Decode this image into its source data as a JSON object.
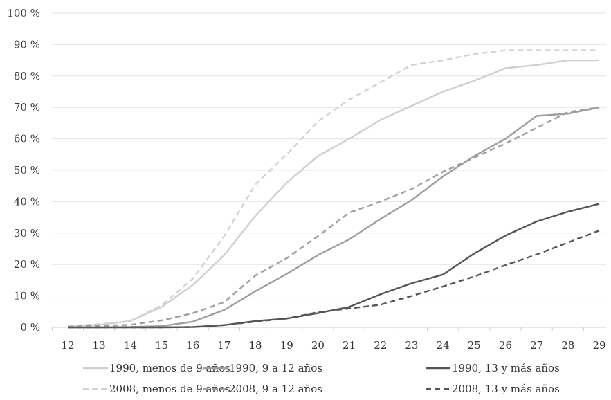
{
  "chart_data": {
    "type": "line",
    "title": "",
    "xlabel": "",
    "ylabel": "",
    "x": [
      "12",
      "13",
      "14",
      "15",
      "16",
      "17",
      "18",
      "19",
      "20",
      "21",
      "22",
      "23",
      "24",
      "25",
      "26",
      "27",
      "28",
      "29"
    ],
    "ylim": [
      0,
      100
    ],
    "yticks": [
      "0 %",
      "10 %",
      "20 %",
      "30 %",
      "40 %",
      "50 %",
      "60 %",
      "70 %",
      "80 %",
      "90 %",
      "100 %"
    ],
    "grid": true,
    "legend_position": "bottom",
    "series": [
      {
        "name": "1990, menos de 9 años",
        "color": "#cfcfcf",
        "dash": "solid",
        "values": [
          0.5,
          0.8,
          2.0,
          6.5,
          13.5,
          23,
          35.5,
          46,
          54.5,
          60,
          66,
          70.5,
          75,
          78.5,
          82.5,
          83.5,
          85,
          85
        ]
      },
      {
        "name": "1990, 9 a 12 años",
        "color": "#9e9e9e",
        "dash": "solid",
        "values": [
          0,
          0,
          0.1,
          0.4,
          1.8,
          5.5,
          11.5,
          17,
          23,
          28,
          34.5,
          40.5,
          48,
          54.5,
          60,
          67.3,
          68,
          70
        ]
      },
      {
        "name": "1990, 13 y más años",
        "color": "#555555",
        "dash": "solid",
        "values": [
          0,
          0,
          0,
          0,
          0.1,
          0.7,
          2,
          2.8,
          4.5,
          6.5,
          10.5,
          14,
          16.8,
          23.5,
          29.2,
          33.7,
          36.8,
          39.3
        ]
      },
      {
        "name": "2008, menos de 9 años",
        "color": "#d2d2d2",
        "dash": "dashed",
        "values": [
          0.5,
          1.0,
          2.0,
          7.0,
          15.5,
          29,
          45.5,
          55,
          65.5,
          72.5,
          78,
          83.5,
          85,
          87,
          88.2,
          88.2,
          88.2,
          88.2
        ]
      },
      {
        "name": "2008, 9 a 12 años",
        "color": "#9e9e9e",
        "dash": "dashed",
        "values": [
          0.2,
          0.5,
          0.8,
          2.2,
          4.5,
          8,
          16.5,
          22,
          29,
          36.5,
          40,
          44,
          49.5,
          54,
          58.5,
          63.5,
          68.5,
          70
        ]
      },
      {
        "name": "2008, 13 y más años",
        "color": "#555555",
        "dash": "dashed",
        "values": [
          0,
          0,
          0,
          0,
          0.1,
          0.7,
          1.8,
          2.8,
          4.8,
          6,
          7.2,
          10,
          13,
          16.2,
          19.8,
          23.2,
          27,
          30.8
        ]
      }
    ]
  }
}
